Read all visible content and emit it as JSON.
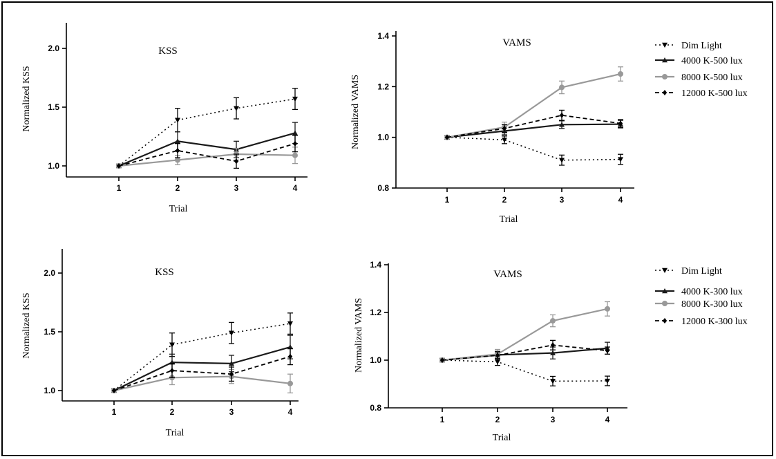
{
  "colors": {
    "dim": "#000000",
    "k4000": "#1a1a1a",
    "k8000": "#999999",
    "k12000": "#000000"
  },
  "chart_data": [
    {
      "type": "line",
      "title": "KSS",
      "xlabel": "Trial",
      "ylabel": "Normalized KSS",
      "x": [
        1,
        2,
        3,
        4
      ],
      "xticks": [
        "1",
        "2",
        "3",
        "4"
      ],
      "yticks": [
        "1.0",
        "1.5",
        "2.0"
      ],
      "ylim": [
        0.9,
        2.2
      ],
      "series": [
        {
          "name": "Dim Light",
          "style": "dotted",
          "marker": "triangle-down",
          "values": [
            1.0,
            1.39,
            1.49,
            1.57
          ],
          "errors": [
            0,
            0.1,
            0.09,
            0.09
          ]
        },
        {
          "name": "4000 K-500 lux",
          "style": "solid",
          "marker": "triangle-up",
          "values": [
            1.0,
            1.21,
            1.14,
            1.28
          ],
          "errors": [
            0,
            0.08,
            0.07,
            0.09
          ]
        },
        {
          "name": "8000 K-500 lux",
          "style": "solid-gray",
          "marker": "circle",
          "values": [
            1.0,
            1.05,
            1.1,
            1.09
          ],
          "errors": [
            0,
            0.04,
            0.05,
            0.07
          ]
        },
        {
          "name": "12000 K-500 lux",
          "style": "dashed",
          "marker": "diamond",
          "values": [
            1.0,
            1.13,
            1.04,
            1.19
          ],
          "errors": [
            0,
            0.06,
            0.06,
            0.07
          ]
        }
      ]
    },
    {
      "type": "line",
      "title": "VAMS",
      "xlabel": "Trial",
      "ylabel": "Normalized VAMS",
      "x": [
        1,
        2,
        3,
        4
      ],
      "xticks": [
        "1",
        "2",
        "3",
        "4"
      ],
      "yticks": [
        "0.8",
        "1.0",
        "1.2",
        "1.4"
      ],
      "ylim": [
        0.8,
        1.4
      ],
      "legend": [
        "Dim Light",
        "4000 K-500 lux",
        "8000 K-500 lux",
        "12000 K-500 lux"
      ],
      "series": [
        {
          "name": "Dim Light",
          "style": "dotted",
          "marker": "triangle-down",
          "values": [
            1.0,
            0.99,
            0.91,
            0.913
          ],
          "errors": [
            0,
            0.015,
            0.02,
            0.02
          ]
        },
        {
          "name": "4000 K-500 lux",
          "style": "solid",
          "marker": "triangle-up",
          "values": [
            1.0,
            1.025,
            1.05,
            1.052
          ],
          "errors": [
            0,
            0.015,
            0.015,
            0.015
          ]
        },
        {
          "name": "8000 K-500 lux",
          "style": "solid-gray",
          "marker": "circle",
          "values": [
            1.0,
            1.04,
            1.197,
            1.25
          ],
          "errors": [
            0,
            0.02,
            0.025,
            0.028
          ]
        },
        {
          "name": "12000 K-500 lux",
          "style": "dashed",
          "marker": "diamond",
          "values": [
            1.0,
            1.035,
            1.087,
            1.055
          ],
          "errors": [
            0,
            0.015,
            0.02,
            0.015
          ]
        }
      ]
    },
    {
      "type": "line",
      "title": "KSS",
      "xlabel": "Trial",
      "ylabel": "Normalized KSS",
      "x": [
        1,
        2,
        3,
        4
      ],
      "xticks": [
        "1",
        "2",
        "3",
        "4"
      ],
      "yticks": [
        "1.0",
        "1.5",
        "2.0"
      ],
      "ylim": [
        0.9,
        2.2
      ],
      "series": [
        {
          "name": "Dim Light",
          "style": "dotted",
          "marker": "triangle-down",
          "values": [
            1.0,
            1.39,
            1.49,
            1.57
          ],
          "errors": [
            0,
            0.1,
            0.09,
            0.09
          ]
        },
        {
          "name": "4000 K-300 lux",
          "style": "solid",
          "marker": "triangle-up",
          "values": [
            1.0,
            1.24,
            1.23,
            1.37
          ],
          "errors": [
            0,
            0.07,
            0.07,
            0.1
          ]
        },
        {
          "name": "8000 K-300 lux",
          "style": "solid-gray",
          "marker": "circle",
          "values": [
            1.0,
            1.11,
            1.12,
            1.06
          ],
          "errors": [
            0,
            0.06,
            0.06,
            0.08
          ]
        },
        {
          "name": "12000 K-300 lux",
          "style": "dashed",
          "marker": "diamond",
          "values": [
            1.0,
            1.17,
            1.14,
            1.29
          ],
          "errors": [
            0,
            0.06,
            0.06,
            0.07
          ]
        }
      ]
    },
    {
      "type": "line",
      "title": "VAMS",
      "xlabel": "Trial",
      "ylabel": "Normalized VAMS",
      "x": [
        1,
        2,
        3,
        4
      ],
      "xticks": [
        "1",
        "2",
        "3",
        "4"
      ],
      "yticks": [
        "0.8",
        "1.0",
        "1.2",
        "1.4"
      ],
      "ylim": [
        0.8,
        1.4
      ],
      "legend": [
        "Dim Light",
        "4000 K-300 lux",
        "8000 K-300 lux",
        "12000 K-300 lux"
      ],
      "series": [
        {
          "name": "Dim Light",
          "style": "dotted",
          "marker": "triangle-down",
          "values": [
            1.0,
            0.993,
            0.912,
            0.913
          ],
          "errors": [
            0,
            0.015,
            0.02,
            0.02
          ]
        },
        {
          "name": "4000 K-300 lux",
          "style": "solid",
          "marker": "triangle-up",
          "values": [
            1.0,
            1.022,
            1.03,
            1.05
          ],
          "errors": [
            0,
            0.015,
            0.025,
            0.025
          ]
        },
        {
          "name": "8000 K-300 lux",
          "style": "solid-gray",
          "marker": "circle",
          "values": [
            1.0,
            1.025,
            1.165,
            1.215
          ],
          "errors": [
            0,
            0.02,
            0.025,
            0.03
          ]
        },
        {
          "name": "12000 K-300 lux",
          "style": "dashed",
          "marker": "diamond",
          "values": [
            1.0,
            1.02,
            1.063,
            1.04
          ],
          "errors": [
            0,
            0.015,
            0.02,
            0.015
          ]
        }
      ]
    }
  ]
}
